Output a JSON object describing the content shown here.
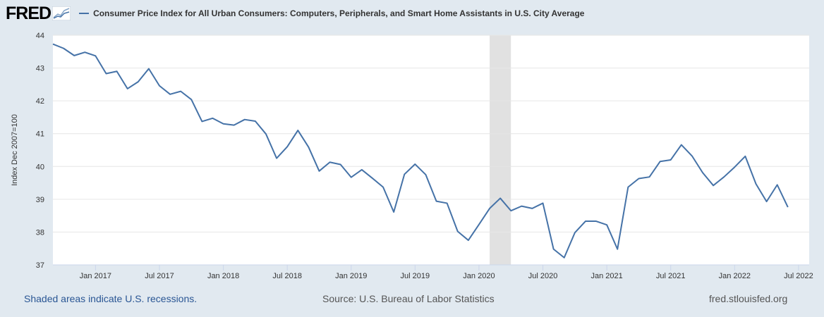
{
  "header": {
    "logo_text": "FRED",
    "logo_icon": "trend-chart-icon",
    "series_title": "Consumer Price Index for All Urban Consumers: Computers, Peripherals, and Smart Home Assistants in U.S. City Average"
  },
  "footer": {
    "recession_note": "Shaded areas indicate U.S. recessions.",
    "source": "Source: U.S. Bureau of Labor Statistics",
    "site": "fred.stlouisfed.org"
  },
  "colors": {
    "background": "#e1e9f0",
    "plot_background": "#ffffff",
    "series_line": "#4572a7",
    "recession_shade": "#e1e1e1",
    "grid": "#e6e6e6"
  },
  "chart_data": {
    "type": "line",
    "title": "Consumer Price Index for All Urban Consumers: Computers, Peripherals, and Smart Home Assistants in U.S. City Average",
    "ylabel": "Index Dec 2007=100",
    "xlabel": "",
    "ylim": [
      37,
      44
    ],
    "yticks": [
      37,
      38,
      39,
      40,
      41,
      42,
      43,
      44
    ],
    "grid": true,
    "x_tick_labels": [
      "Jan 2017",
      "Jul 2017",
      "Jan 2018",
      "Jul 2018",
      "Jan 2019",
      "Jul 2019",
      "Jan 2020",
      "Jul 2020",
      "Jan 2021",
      "Jul 2021",
      "Jan 2022",
      "Jul 2022"
    ],
    "x_tick_dates": [
      "2017-01",
      "2017-07",
      "2018-01",
      "2018-07",
      "2019-01",
      "2019-07",
      "2020-01",
      "2020-07",
      "2021-01",
      "2021-07",
      "2022-01",
      "2022-07"
    ],
    "recessions": [
      {
        "start": "2020-02",
        "end": "2020-04"
      }
    ],
    "series": [
      {
        "name": "Consumer Price Index for All Urban Consumers: Computers, Peripherals, and Smart Home Assistants in U.S. City Average",
        "x": [
          "2016-09",
          "2016-10",
          "2016-11",
          "2016-12",
          "2017-01",
          "2017-02",
          "2017-03",
          "2017-04",
          "2017-05",
          "2017-06",
          "2017-07",
          "2017-08",
          "2017-09",
          "2017-10",
          "2017-11",
          "2017-12",
          "2018-01",
          "2018-02",
          "2018-03",
          "2018-04",
          "2018-05",
          "2018-06",
          "2018-07",
          "2018-08",
          "2018-09",
          "2018-10",
          "2018-11",
          "2018-12",
          "2019-01",
          "2019-02",
          "2019-03",
          "2019-04",
          "2019-05",
          "2019-06",
          "2019-07",
          "2019-08",
          "2019-09",
          "2019-10",
          "2019-11",
          "2019-12",
          "2020-01",
          "2020-02",
          "2020-03",
          "2020-04",
          "2020-05",
          "2020-06",
          "2020-07",
          "2020-08",
          "2020-09",
          "2020-10",
          "2020-11",
          "2020-12",
          "2021-01",
          "2021-02",
          "2021-03",
          "2021-04",
          "2021-05",
          "2021-06",
          "2021-07",
          "2021-08",
          "2021-09",
          "2021-10",
          "2021-11",
          "2021-12",
          "2022-01",
          "2022-02",
          "2022-03",
          "2022-04",
          "2022-05",
          "2022-06",
          "2022-07",
          "2022-08"
        ],
        "values": [
          43.73,
          43.6,
          43.38,
          43.48,
          43.37,
          42.83,
          42.9,
          42.37,
          42.58,
          42.98,
          42.46,
          42.2,
          42.29,
          42.04,
          41.37,
          41.47,
          41.3,
          41.26,
          41.43,
          41.38,
          40.99,
          40.25,
          40.6,
          41.1,
          40.59,
          39.86,
          40.13,
          40.06,
          39.67,
          39.9,
          39.64,
          39.37,
          38.61,
          39.76,
          40.07,
          39.75,
          38.94,
          38.88,
          38.02,
          37.75,
          38.23,
          38.72,
          39.03,
          38.65,
          38.79,
          38.72,
          38.88,
          37.48,
          37.22,
          37.98,
          38.33,
          38.33,
          38.22,
          37.48,
          39.37,
          39.63,
          39.68,
          40.15,
          40.2,
          40.66,
          40.32,
          39.81,
          39.42,
          39.68,
          39.98,
          40.31,
          39.47,
          38.93,
          39.44,
          38.76,
          null,
          null
        ]
      }
    ]
  }
}
